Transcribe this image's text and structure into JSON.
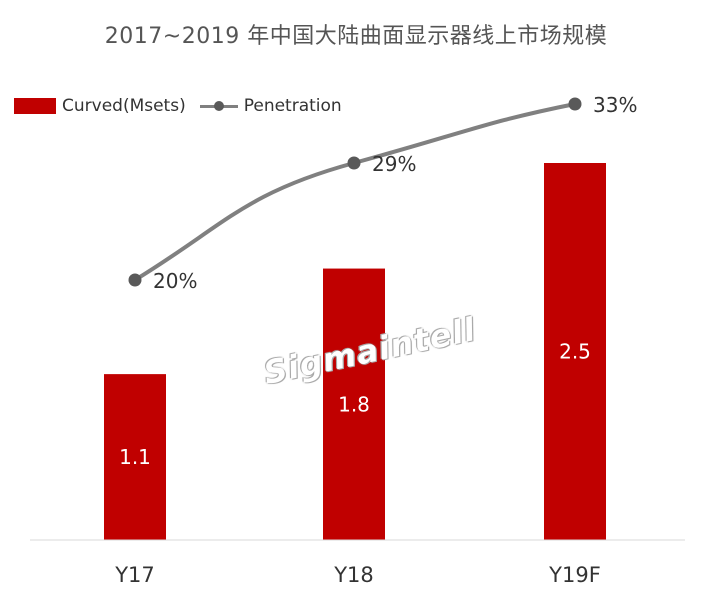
{
  "chart_data": {
    "type": "bar",
    "title": "2017~2019 年中国大陆曲面显示器线上市场规模",
    "categories": [
      "Y17",
      "Y18",
      "Y19F"
    ],
    "series": [
      {
        "name": "Curved(Msets)",
        "type": "bar",
        "values": [
          1.1,
          1.8,
          2.5
        ],
        "labels": [
          "1.1",
          "1.8",
          "2.5"
        ],
        "color": "#c00000"
      },
      {
        "name": "Penetration",
        "type": "line",
        "values": [
          20,
          29,
          33
        ],
        "labels": [
          "20%",
          "29%",
          "33%"
        ],
        "color": "#808080"
      }
    ],
    "ylim": [
      0,
      2.8
    ],
    "ylim_secondary": [
      0,
      34
    ],
    "grid": false,
    "legend": "top-left"
  },
  "watermark": "Sigmaintell"
}
